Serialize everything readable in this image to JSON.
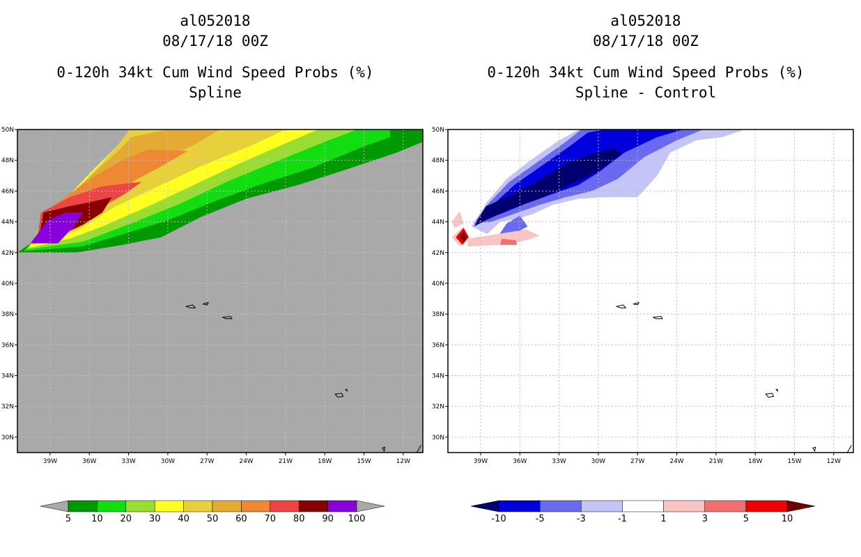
{
  "panels": [
    {
      "title_lines": [
        "al052018",
        "08/17/18 00Z",
        "0-120h 34kt Cum Wind Speed Probs (%)",
        "Spline"
      ],
      "background": "#a9a9a9"
    },
    {
      "title_lines": [
        "al052018",
        "08/17/18 00Z",
        "0-120h 34kt Cum Wind Speed Probs (%)",
        "Spline - Control"
      ],
      "background": "#ffffff"
    }
  ],
  "chart_data": [
    {
      "type": "heatmap",
      "title": "al052018 08/17/18 00Z 0-120h 34kt Cum Wind Speed Probs (%) Spline",
      "xlim": [
        -41.5,
        -10.5
      ],
      "ylim": [
        29,
        50
      ],
      "x_ticks": [
        "39W",
        "36W",
        "33W",
        "30W",
        "27W",
        "24W",
        "21W",
        "18W",
        "15W",
        "12W"
      ],
      "y_ticks": [
        "30N",
        "32N",
        "34N",
        "36N",
        "38N",
        "40N",
        "42N",
        "44N",
        "46N",
        "48N",
        "50N"
      ],
      "colorbar": {
        "labels": [
          "5",
          "10",
          "20",
          "30",
          "40",
          "50",
          "60",
          "70",
          "80",
          "90",
          "100"
        ],
        "colors": [
          "#009900",
          "#11dd11",
          "#99dd33",
          "#ffff22",
          "#e8d03a",
          "#e4aa33",
          "#ee8833",
          "#ee4444",
          "#880000",
          "#8800dd"
        ],
        "end_color": "#a9a9a9"
      }
    },
    {
      "type": "heatmap",
      "title": "al052018 08/17/18 00Z 0-120h 34kt Cum Wind Speed Probs (%) Spline - Control",
      "xlim": [
        -41.5,
        -10.5
      ],
      "ylim": [
        29,
        50
      ],
      "x_ticks": [
        "39W",
        "36W",
        "33W",
        "30W",
        "27W",
        "24W",
        "21W",
        "18W",
        "15W",
        "12W"
      ],
      "y_ticks": [
        "30N",
        "32N",
        "34N",
        "36N",
        "38N",
        "40N",
        "42N",
        "44N",
        "46N",
        "48N",
        "50N"
      ],
      "colorbar": {
        "labels": [
          "-10",
          "-5",
          "-3",
          "-1",
          "1",
          "3",
          "5",
          "10"
        ],
        "colors": [
          "#0000dd",
          "#6a6af0",
          "#c4c4f8",
          "#ffffff",
          "#f8c4c4",
          "#f07070",
          "#ee0000"
        ],
        "end_colors": [
          "#00006e",
          "#6e0000"
        ]
      }
    }
  ]
}
